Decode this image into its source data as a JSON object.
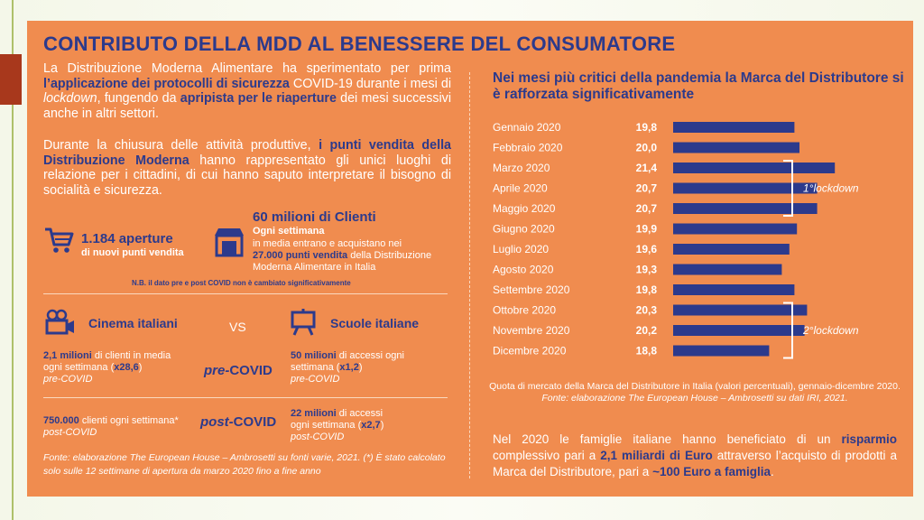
{
  "title": "CONTRIBUTO DELLA MDD AL BENESSERE DEL CONSUMATORE",
  "intro1": [
    {
      "t": "La Distribuzione Moderna Alimentare ha sperimentato per prima ",
      "s": "n"
    },
    {
      "t": "l’applicazione dei protocolli di sicurezza",
      "s": "b"
    },
    {
      "t": " COVID-19 durante i mesi di ",
      "s": "n"
    },
    {
      "t": "lockdown",
      "s": "i"
    },
    {
      "t": ", fungendo da ",
      "s": "n"
    },
    {
      "t": "apripista per le riaperture",
      "s": "b"
    },
    {
      "t": " dei mesi successivi anche in altri settori.",
      "s": "n"
    }
  ],
  "intro2": [
    {
      "t": "Durante la chiusura delle attività produttive, ",
      "s": "n"
    },
    {
      "t": "i punti vendita della Distribuzione Moderna",
      "s": "b"
    },
    {
      "t": " hanno rappresentato gli unici luoghi di relazione per i cittadini, di cui hanno saputo interpretare il bisogno di socialità e sicurezza.",
      "s": "n"
    }
  ],
  "stats": {
    "openings_num": "1.184 aperture",
    "openings_sub": "di nuovi punti vendita",
    "clients_num": "60 milioni di Clienti",
    "clients_week": "Ogni settimana",
    "clients_desc1": "in media entrano e acquistano nei",
    "clients_desc2_bold": "27.000 punti vendita",
    "clients_desc2_rest": " della Distribuzione",
    "clients_desc3": "Moderna Alimentare in Italia",
    "nb": "N.B. il dato pre e post COVID non è cambiato significativamente"
  },
  "compare": {
    "cinema_label": "Cinema italiani",
    "vs": "VS",
    "schools_label": "Scuole italiane",
    "pre_label_a": "pre-",
    "pre_label_b": "COVID",
    "post_label_a": "post-",
    "post_label_b": "COVID",
    "cinema_pre_bold": "2,1 milioni",
    "cinema_pre_rest": " di clienti in media",
    "cinema_pre_line2a": "ogni settimana (",
    "cinema_pre_mult": "x28,6",
    "cinema_pre_line2b": ")",
    "cinema_pre_line3": "pre-COVID",
    "schools_pre_bold": "50 milioni",
    "schools_pre_rest": " di accessi ogni",
    "schools_pre_line2a": "settimana (",
    "schools_pre_mult": "x1,2",
    "schools_pre_line2b": ")",
    "schools_pre_line3": "pre-COVID",
    "cinema_post_bold": "750.000",
    "cinema_post_rest": " clienti ogni settimana*",
    "cinema_post_line2": "post-COVID",
    "schools_post_bold": "22 milioni",
    "schools_post_rest": " di accessi",
    "schools_post_line2a": "ogni settimana (",
    "schools_post_mult": "x2,7",
    "schools_post_line2b": ")",
    "schools_post_line3": "post-COVID"
  },
  "footnote": "Fonte: elaborazione The European House – Ambrosetti su fonti varie, 2021. (*) È stato calcolato solo sulle 12 settimane di apertura da marzo 2020 fino a fine anno",
  "chart_title": "Nei mesi più critici della pandemia la Marca del Distributore si è rafforzata significativamente",
  "chart_data": {
    "type": "bar",
    "orientation": "horizontal",
    "categories": [
      "Gennaio 2020",
      "Febbraio 2020",
      "Marzo 2020",
      "Aprile 2020",
      "Maggio 2020",
      "Giugno 2020",
      "Luglio 2020",
      "Agosto 2020",
      "Settembre 2020",
      "Ottobre 2020",
      "Novembre 2020",
      "Dicembre 2020"
    ],
    "values": [
      19.8,
      20.0,
      21.4,
      20.7,
      20.7,
      19.9,
      19.6,
      19.3,
      19.8,
      20.3,
      20.2,
      18.8
    ],
    "value_labels": [
      "19,8",
      "20,0",
      "21,4",
      "20,7",
      "20,7",
      "19,9",
      "19,6",
      "19,3",
      "19,8",
      "20,3",
      "20,2",
      "18,8"
    ],
    "annotations": [
      {
        "label": "1°lockdown",
        "from": "Marzo 2020",
        "to": "Maggio 2020"
      },
      {
        "label": "2°lockdown",
        "from": "Ottobre 2020",
        "to": "Dicembre 2020"
      }
    ],
    "bar_color": "#2c3a8c"
  },
  "caption_normal": "Quota di mercato della Marca del Distributore in Italia (valori percentuali), gennaio-dicembre 2020. ",
  "caption_italic": "Fonte: elaborazione The European House – Ambrosetti su dati IRI, 2021.",
  "conclusion": [
    {
      "t": "Nel 2020 le famiglie italiane hanno beneficiato di un ",
      "s": "n"
    },
    {
      "t": "risparmio",
      "s": "b"
    },
    {
      "t": " complessivo pari a ",
      "s": "n"
    },
    {
      "t": "2,1 miliardi di Euro",
      "s": "b"
    },
    {
      "t": " attraverso l’acquisto di prodotti a Marca del Distributore, pari a ",
      "s": "n"
    },
    {
      "t": "~100 Euro a famiglia",
      "s": "b"
    },
    {
      "t": ".",
      "s": "n"
    }
  ],
  "colors": {
    "panel": "#f08c4f",
    "navy": "#2c3a8c",
    "accent_red": "#a8381c"
  }
}
